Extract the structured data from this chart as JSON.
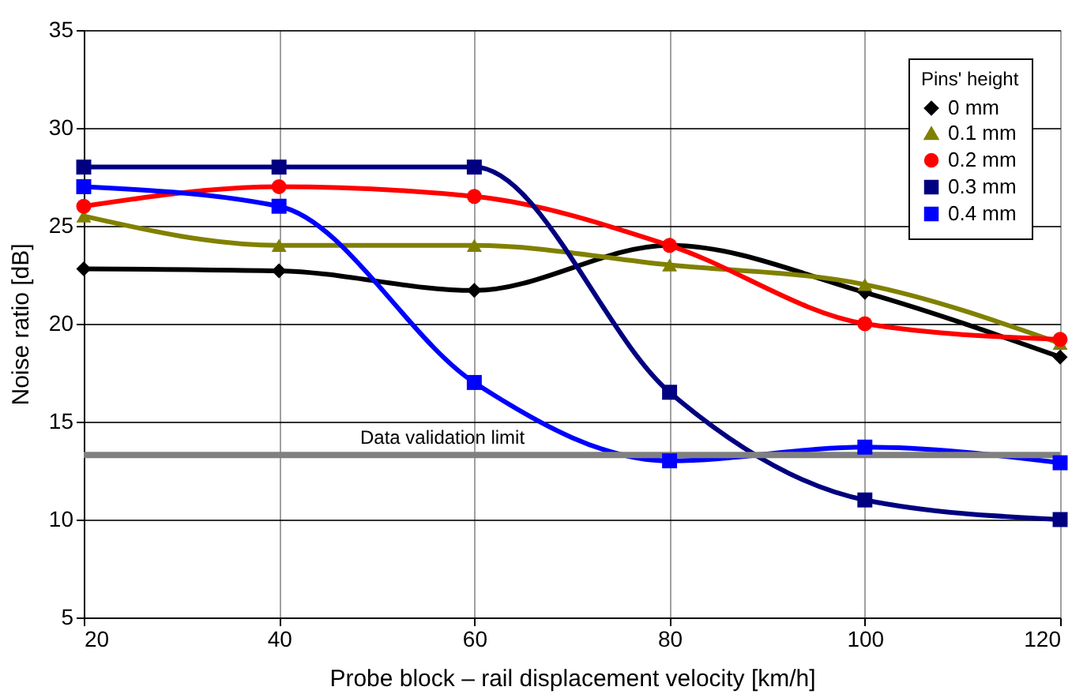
{
  "chart_data": {
    "type": "line",
    "xlabel": "Probe block – rail displacement velocity [km/h]",
    "ylabel": "Noise ratio [dB]",
    "legend_title": "Pins' height",
    "x": [
      20,
      40,
      60,
      80,
      100,
      120
    ],
    "xlim": [
      20,
      120
    ],
    "xticks": [
      20,
      40,
      60,
      80,
      100,
      120
    ],
    "ylim": [
      5,
      35
    ],
    "yticks": [
      5,
      10,
      15,
      20,
      25,
      30,
      35
    ],
    "grid": true,
    "legend": "top right",
    "line_style": "solid",
    "series": [
      {
        "name": "0 mm",
        "color": "#000000",
        "marker": "diamond",
        "values": [
          22.8,
          22.7,
          21.7,
          24.0,
          21.6,
          18.3
        ]
      },
      {
        "name": "0.1 mm",
        "color": "#808000",
        "marker": "triangle",
        "values": [
          25.5,
          24.0,
          24.0,
          23.0,
          22.0,
          19.0
        ]
      },
      {
        "name": "0.2 mm",
        "color": "#ff0000",
        "marker": "circle",
        "values": [
          26.0,
          27.0,
          26.5,
          24.0,
          20.0,
          19.2
        ]
      },
      {
        "name": "0.3 mm",
        "color": "#000080",
        "marker": "square",
        "values": [
          28.0,
          28.0,
          28.0,
          16.5,
          11.0,
          10.0
        ]
      },
      {
        "name": "0.4 mm",
        "color": "#0000ff",
        "marker": "square",
        "values": [
          27.0,
          26.0,
          17.0,
          13.0,
          13.7,
          12.9
        ]
      }
    ],
    "ref_lines": [
      {
        "axis": "y",
        "value": 13.3,
        "label": "Data validation limit",
        "color": "#808080",
        "line_style": "solid"
      }
    ]
  }
}
